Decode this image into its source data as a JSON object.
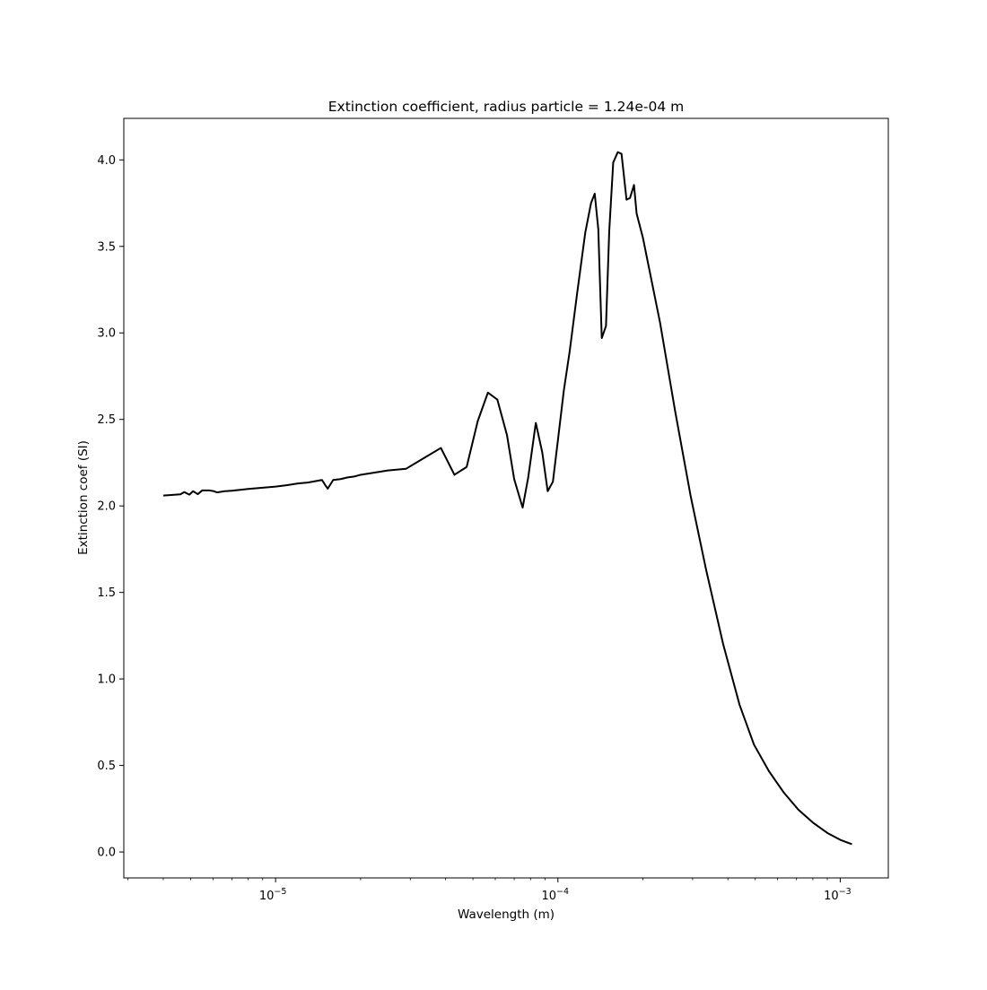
{
  "chart_data": {
    "type": "line",
    "title": "Extinction coefficient, radius particle = 1.24e-04 m",
    "xlabel": "Wavelength (m)",
    "ylabel": "Extinction coef (SI)",
    "xscale": "log",
    "xlim": [
      2.9e-06,
      0.00148
    ],
    "ylim": [
      -0.15,
      4.24
    ],
    "grid": false,
    "line_color": "#000000",
    "x_ticks": [
      {
        "value": 1e-05,
        "base": "10",
        "exp": "−5"
      },
      {
        "value": 0.0001,
        "base": "10",
        "exp": "−4"
      },
      {
        "value": 0.001,
        "base": "10",
        "exp": "−3"
      }
    ],
    "y_ticks": [
      {
        "value": 0.0,
        "label": "0.0"
      },
      {
        "value": 0.5,
        "label": "0.5"
      },
      {
        "value": 1.0,
        "label": "1.0"
      },
      {
        "value": 1.5,
        "label": "1.5"
      },
      {
        "value": 2.0,
        "label": "2.0"
      },
      {
        "value": 2.5,
        "label": "2.5"
      },
      {
        "value": 3.0,
        "label": "3.0"
      },
      {
        "value": 3.5,
        "label": "3.5"
      },
      {
        "value": 4.0,
        "label": "4.0"
      }
    ],
    "series": [
      {
        "x": [
          4e-06,
          4.6e-06,
          4.75e-06,
          4.95e-06,
          5.1e-06,
          5.3e-06,
          5.5e-06,
          5.8e-06,
          6.05e-06,
          6.2e-06,
          6.6e-06,
          7e-06,
          8e-06,
          9e-06,
          1e-05,
          1.1e-05,
          1.2e-05,
          1.3e-05,
          1.46e-05,
          1.5e-05,
          1.53e-05,
          1.6e-05,
          1.7e-05,
          1.8e-05,
          1.9e-05,
          2e-05,
          2.5e-05,
          2.9e-05,
          3.3e-05,
          3.85e-05,
          4.3e-05,
          4.75e-05,
          5.2e-05,
          5.65e-05,
          6.1e-05,
          6.6e-05,
          7e-05,
          7.5e-05,
          7.85e-05,
          8.35e-05,
          8.8e-05,
          9.2e-05,
          9.6e-05,
          0.0001,
          0.000105,
          0.00011,
          0.000117,
          0.000125,
          0.000131,
          0.000135,
          0.000139,
          0.000143,
          0.000148,
          0.000152,
          0.000157,
          0.000163,
          0.000168,
          0.000175,
          0.00018,
          0.000186,
          0.00019,
          0.0002,
          0.00023,
          0.00026,
          0.000295,
          0.000335,
          0.000385,
          0.00044,
          0.000495,
          0.00056,
          0.00063,
          0.00071,
          0.0008,
          0.0009,
          0.001,
          0.0011
        ],
        "y": [
          2.06,
          2.067,
          2.08,
          2.065,
          2.085,
          2.068,
          2.09,
          2.09,
          2.085,
          2.078,
          2.085,
          2.088,
          2.098,
          2.105,
          2.112,
          2.12,
          2.13,
          2.135,
          2.15,
          2.12,
          2.1,
          2.15,
          2.155,
          2.165,
          2.17,
          2.18,
          2.205,
          2.215,
          2.27,
          2.335,
          2.18,
          2.225,
          2.49,
          2.655,
          2.615,
          2.41,
          2.155,
          1.99,
          2.165,
          2.48,
          2.31,
          2.085,
          2.14,
          2.38,
          2.67,
          2.89,
          3.23,
          3.58,
          3.75,
          3.805,
          3.6,
          2.97,
          3.04,
          3.59,
          3.985,
          4.045,
          4.035,
          3.77,
          3.78,
          3.855,
          3.69,
          3.55,
          3.06,
          2.55,
          2.06,
          1.63,
          1.2,
          0.85,
          0.62,
          0.465,
          0.345,
          0.245,
          0.17,
          0.11,
          0.07,
          0.045
        ]
      }
    ]
  }
}
